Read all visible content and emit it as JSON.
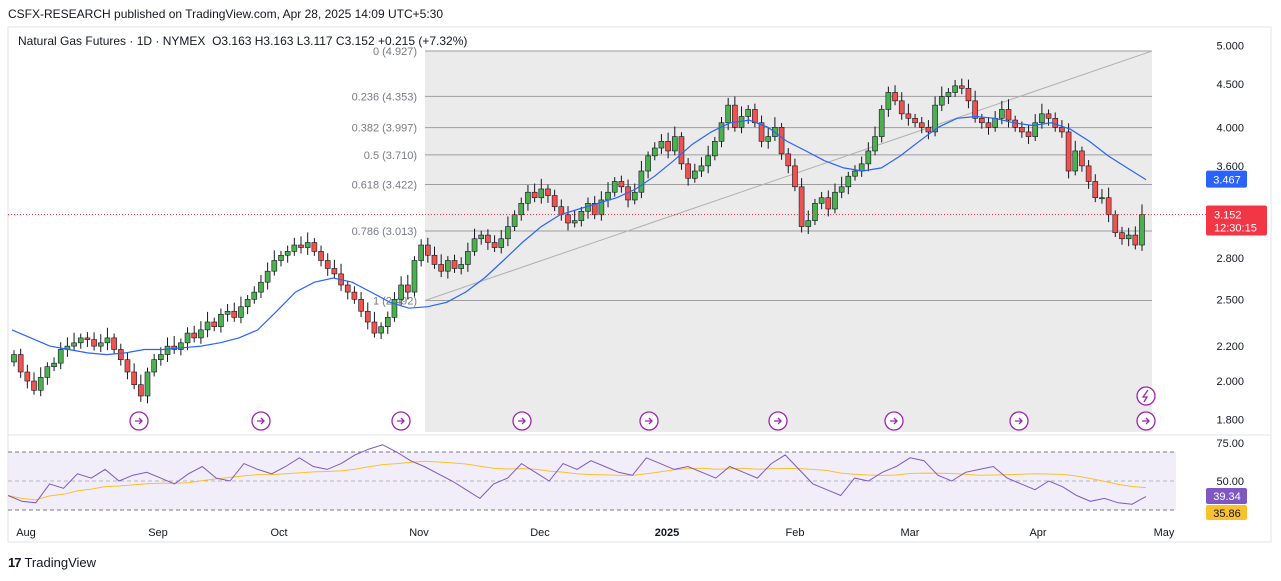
{
  "header": {
    "publisher": "CSFX-RESEARCH published on TradingView.com, Apr 28, 2025 14:09 UTC+5:30",
    "symbol": "Natural Gas Futures · 1D · NYMEX",
    "ohlc": "O3.163  H3.163  L3.117  C3.152  +0.215 (+7.32%)"
  },
  "footer": {
    "logo_text": "TradingView",
    "logo_mark": "17"
  },
  "colors": {
    "up": "#26a69a",
    "up_body": "#4caf50",
    "down": "#ef5350",
    "ma": "#2962ff",
    "rsi": "#7e57c2",
    "rsi_ma": "#fbc02d",
    "fib_zone": "#ebebeb",
    "last_price": "#f23645",
    "ma_label": "#2962ff"
  },
  "chart_data": [
    {
      "type": "candlestick",
      "title": "Natural Gas Futures · 1D · NYMEX",
      "y_axis_ticks": [
        "5.000",
        "4.500",
        "4.000",
        "3.600",
        "3.200",
        "2.800",
        "2.500",
        "2.200",
        "2.000",
        "1.800"
      ],
      "y_scale": "log",
      "ylim": [
        1.74,
        5.05
      ],
      "x_axis_labels": [
        "Aug",
        "Sep",
        "Oct",
        "Nov",
        "Dec",
        "2025",
        "Feb",
        "Mar",
        "Apr",
        "May"
      ],
      "last_price": "3.152",
      "countdown": "12:30:15",
      "ma_value": "3.467",
      "fib_levels": [
        {
          "ratio": "0",
          "value": 4.927,
          "label": "0 (4.927)"
        },
        {
          "ratio": "0.236",
          "value": 4.353,
          "label": "0.236 (4.353)"
        },
        {
          "ratio": "0.382",
          "value": 3.997,
          "label": "0.382 (3.997)"
        },
        {
          "ratio": "0.5",
          "value": 3.71,
          "label": "0.5 (3.710)"
        },
        {
          "ratio": "0.618",
          "value": 3.422,
          "label": "0.618 (3.422)"
        },
        {
          "ratio": "0.786",
          "value": 3.013,
          "label": "0.786 (3.013)"
        },
        {
          "ratio": "1",
          "value": 2.492,
          "label": "1 (2.492)"
        }
      ],
      "close_path": [
        2.15,
        2.05,
        2.0,
        1.95,
        2.02,
        2.08,
        2.1,
        2.18,
        2.2,
        2.22,
        2.25,
        2.24,
        2.2,
        2.22,
        2.25,
        2.18,
        2.12,
        2.05,
        1.98,
        1.92,
        2.05,
        2.12,
        2.15,
        2.2,
        2.18,
        2.22,
        2.28,
        2.25,
        2.3,
        2.35,
        2.32,
        2.4,
        2.42,
        2.38,
        2.45,
        2.5,
        2.55,
        2.62,
        2.7,
        2.78,
        2.82,
        2.85,
        2.9,
        2.88,
        2.92,
        2.85,
        2.78,
        2.72,
        2.68,
        2.6,
        2.55,
        2.5,
        2.42,
        2.35,
        2.28,
        2.32,
        2.38,
        2.5,
        2.6,
        2.55,
        2.78,
        2.9,
        2.82,
        2.75,
        2.7,
        2.78,
        2.72,
        2.75,
        2.85,
        2.95,
        2.98,
        2.92,
        2.88,
        2.95,
        3.05,
        3.15,
        3.25,
        3.35,
        3.3,
        3.38,
        3.32,
        3.22,
        3.15,
        3.08,
        3.1,
        3.18,
        3.25,
        3.15,
        3.28,
        3.35,
        3.45,
        3.4,
        3.28,
        3.35,
        3.55,
        3.7,
        3.78,
        3.85,
        3.75,
        3.9,
        3.62,
        3.48,
        3.55,
        3.6,
        3.7,
        3.85,
        4.05,
        4.25,
        4.0,
        4.12,
        4.2,
        4.05,
        3.85,
        3.9,
        4.0,
        3.72,
        3.6,
        3.4,
        3.05,
        3.1,
        3.25,
        3.3,
        3.2,
        3.35,
        3.4,
        3.5,
        3.55,
        3.62,
        3.75,
        3.9,
        4.2,
        4.4,
        4.3,
        4.15,
        4.1,
        4.05,
        4.0,
        3.95,
        4.25,
        4.35,
        4.4,
        4.48,
        4.45,
        4.3,
        4.1,
        4.05,
        4.0,
        4.1,
        4.2,
        4.08,
        4.0,
        3.95,
        3.9,
        4.05,
        4.15,
        4.1,
        4.0,
        3.95,
        3.55,
        3.75,
        3.6,
        3.45,
        3.3,
        3.3,
        3.15,
        3.0,
        2.95,
        2.98,
        2.9,
        3.152
      ],
      "ma_path": [
        2.3,
        2.25,
        2.2,
        2.18,
        2.16,
        2.15,
        2.16,
        2.18,
        2.18,
        2.19,
        2.2,
        2.22,
        2.25,
        2.3,
        2.42,
        2.55,
        2.62,
        2.65,
        2.62,
        2.55,
        2.48,
        2.44,
        2.45,
        2.48,
        2.55,
        2.65,
        2.78,
        2.92,
        3.05,
        3.15,
        3.2,
        3.25,
        3.3,
        3.38,
        3.5,
        3.65,
        3.82,
        3.95,
        4.05,
        4.08,
        4.0,
        3.85,
        3.75,
        3.65,
        3.58,
        3.55,
        3.58,
        3.7,
        3.85,
        4.0,
        4.1,
        4.12,
        4.1,
        4.05,
        4.02,
        4.05,
        3.98,
        3.85,
        3.7,
        3.58,
        3.467
      ],
      "rsi": {
        "label_top": "75.00",
        "label_mid": "50.00",
        "value": "39.34",
        "ma_value": "35.86",
        "range": [
          0,
          100
        ],
        "band": [
          30,
          70
        ],
        "path": [
          40,
          36,
          35,
          48,
          45,
          55,
          52,
          58,
          50,
          54,
          56,
          52,
          48,
          55,
          60,
          52,
          50,
          62,
          58,
          55,
          60,
          66,
          60,
          58,
          62,
          68,
          72,
          75,
          70,
          64,
          60,
          55,
          50,
          44,
          38,
          48,
          52,
          62,
          56,
          50,
          62,
          58,
          64,
          60,
          56,
          54,
          66,
          62,
          58,
          60,
          56,
          52,
          60,
          56,
          52,
          62,
          68,
          58,
          48,
          44,
          40,
          52,
          50,
          56,
          60,
          66,
          64,
          54,
          50,
          56,
          58,
          60,
          52,
          48,
          44,
          50,
          46,
          40,
          36,
          38,
          35,
          34,
          39.34
        ]
      }
    }
  ]
}
